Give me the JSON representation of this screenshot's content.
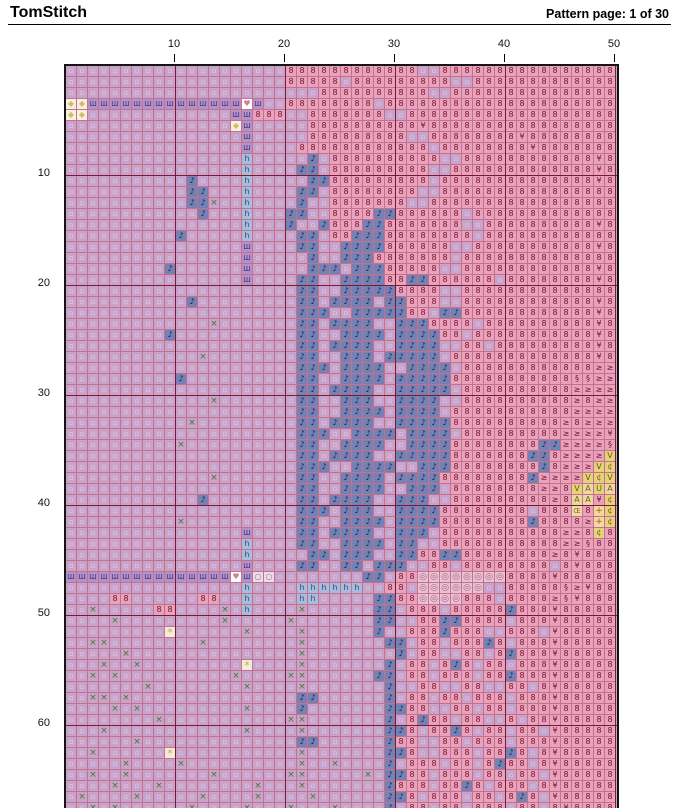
{
  "header": {
    "app_title": "TomStitch",
    "page_info": "Pattern page: 1 of 30"
  },
  "axis": {
    "top_labels": [
      "10",
      "20",
      "30",
      "40",
      "50"
    ],
    "left_labels": [
      "10",
      "20",
      "30",
      "40",
      "50",
      "60"
    ]
  },
  "grid": {
    "cols": 50,
    "rows_count": 68,
    "colors": {
      "minor_line": "#c4728c",
      "major_line": "#6d0c22",
      "outer_border": "#141414",
      "field_bg": "#c8a3cc"
    },
    "legend": {
      ".": {
        "name": "light-lavender-dot",
        "bg": "#c8a3cc",
        "fg": "#e9d4ea",
        "glyph": "▫",
        "size": 7
      },
      "8": {
        "name": "pink-eight",
        "bg": "#e8a2bc",
        "fg": "#77102e",
        "glyph": "8",
        "size": 8
      },
      "n": {
        "name": "blue-music-note",
        "bg": "#7381b4",
        "fg": "#12204e",
        "glyph": "♪",
        "size": 8
      },
      "m": {
        "name": "purple-sha",
        "bg": "#b292c8",
        "fg": "#45307e",
        "glyph": "Ш",
        "size": 7
      },
      "h": {
        "name": "blue-h",
        "bg": "#a9bcdc",
        "fg": "#2d4e86",
        "glyph": "h",
        "size": 8
      },
      "x": {
        "name": "green-cross",
        "bg": "#c8a3cc",
        "fg": "#48762c",
        "glyph": "×",
        "size": 9
      },
      "o": {
        "name": "pale-circle",
        "bg": "#ecdcea",
        "fg": "#9a7898",
        "glyph": "○",
        "size": 8
      },
      "O": {
        "name": "pink-ring",
        "bg": "#e9c3d3",
        "fg": "#a85f7d",
        "glyph": "◎",
        "size": 9
      },
      "d": {
        "name": "cream-diamond",
        "bg": "#f7f1e2",
        "fg": "#d3bd66",
        "glyph": "◆",
        "size": 8
      },
      "w": {
        "name": "white-heart",
        "bg": "#ffffff",
        "fg": "#cf7f95",
        "glyph": "♥",
        "size": 8
      },
      "*": {
        "name": "gold-star",
        "bg": "#f2ecdc",
        "fg": "#cfae3e",
        "glyph": "*",
        "size": 11
      },
      "y": {
        "name": "pink-yen",
        "bg": "#e8a2bc",
        "fg": "#77102e",
        "glyph": "¥",
        "size": 8
      },
      "s": {
        "name": "pink-section",
        "bg": "#e8a2bc",
        "fg": "#77102e",
        "glyph": "§",
        "size": 8
      },
      "g": {
        "name": "pink-gte",
        "bg": "#e8a2bc",
        "fg": "#77102e",
        "glyph": "≥",
        "size": 8
      },
      "V": {
        "name": "yellow-v",
        "bg": "#e5d37b",
        "fg": "#6b5a10",
        "glyph": "V",
        "size": 8
      },
      "A": {
        "name": "tan-a",
        "bg": "#ead9a0",
        "fg": "#7c5c1e",
        "glyph": "A",
        "size": 8
      },
      "U": {
        "name": "yellow-u",
        "bg": "#e5d37b",
        "fg": "#6b5a10",
        "glyph": "U",
        "size": 8
      },
      "c": {
        "name": "yellow-cent",
        "bg": "#e5d37b",
        "fg": "#8a5a10",
        "glyph": "¢",
        "size": 8
      },
      "C": {
        "name": "tan-oe",
        "bg": "#f0dca8",
        "fg": "#a06428",
        "glyph": "Œ",
        "size": 7
      },
      "+": {
        "name": "tan-plus",
        "bg": "#f2d9a2",
        "fg": "#b05818",
        "glyph": "+",
        "size": 9
      }
    },
    "rows": [
      "....................888888888888..8888888888888888",
      "....................88888.888888888..8888888888888",
      ".......................8888888888..888888888888888",
      "ddmmmmmmmmmmmmmmwm..88888888.888888888888888888888",
      "dd.............mm888..8888888..8888888888888888888",
      "...............dm.....8888888888y88888888888888888",
      "................m.....888888888..88888888y88888888",
      "................m....888888888888.88888888y8888888",
      "................h.....n.8888888888..888888888888y8",
      "................h....nn.888888888..8888888888888y8",
      "...........n....h.....nn888888888.88888888888888y8",
      "...........nn...h....nn.88888888..8888888888888888",
      "...........nnx..h....n..8888888..88888888888888888",
      "............n...h...nn..8888nn888888.8888888888888",
      "................h...n..n888nn8888888..8888888888y8",
      "..........n.....h....nn.88nnn88888888.888888888888",
      "................m....nn..nnnn888888..88888888888y8",
      "................m.....n..nnn8888888.88888888888888",
      ".........n......m.....nnn.nnn88888..888888888888y8",
      "................m....nn..nnnn88nn888888.88888888y8",
      ".....................nn..nnnnn8888..88888888888888",
      "...........n.........nn.nnnn.nn888..888888888888y8",
      ".....................nnn..nnnnn88.nn888888888888y8",
      ".............x.......nn.nnnn..nnn8888.8888888888y8",
      ".........n...........nn..nnnn.nnnn88.88888888888y8",
      ".....................nn.nnnn..nnnn..88.888888888y8",
      "............x........nn..nnn.nnnnn.8888888888888y8",
      ".....................nnn.nnnn..nnnn.888888888888gg",
      "..........n..........nn..nnnn.nnnnn88888888888ssgg",
      ".....................nn.nnnn..nnnnn.8888888888gggg",
      ".............x.......nn..nnn..nnnn..8888888888g8gg",
      ".....................nn..nnnn.nnnn.88888888888gggg",
      "...........x.........nn.nnnn..nnnnn8888888888g8ggg",
      ".....................nnn..nnnn.nnnn.888888888ggggy",
      "..........x..........nn..nnnn..nnnn88888888nnggggs",
      ".....................nn.nnnn..nnnnn8888888nn8ggggV",
      ".....................nnn..nnnn..nnn88888888n8gggVc",
      ".............x.......nn..nnnn.nnnn88888888nggggVcV",
      ".....................nn..nnnn..nnn.88888888gg8VAUA",
      "............n........nn.nnnn..nnn..888888888g8AAyc",
      ".....................nnn.nnn..nnnn88888888.888C8+c",
      "..........x..........nn..nnnn.nnnn88888888n8888g+c",
      "................m....nn.nnnn..nnn.88888888888gg8c8",
      "................h....nn..nnnn.nn..88888888888ggs88",
      "................h.....nn.nnn..nn88nn88888888g8y888",
      "................m....nn..nn.nnn..88.88888888.8y888",
      "mmmmmmmmmmmmmmmwmoo........nn.88OOOOOOOO8888y88888",
      "................h....hhhhhh..88.OOOOOO..88888sgy88",
      "....88......88..h....hh.....nn88OOOO888.8888gsy888",
      "..x.....88....x.h....x......nn.888.88888n888y88888",
      "....x.........x.....x.......nn..88nn8888.888y88888",
      ".........*......x....x......n..888n888..888.y88888",
      "..xx........x........x.......nn.88.888n8.888y88888",
      ".....x...............x........n.88..88.8n888y88888",
      "...x..x.........*....x.......n.88.8n8.88.888y88888",
      "..x.x..........x....xx......nn.88.888.88n888y88888",
      ".......x........x....x.......n..88..88..88.8y88888",
      "..xx.x...............nn......n.88.88.888.888y88888",
      "....x.x.........x....n.......nn88..88.88.888y88888",
      "........x...........xx.......n.8n88.88..8.88y88888",
      "...x............x....x.......nn8.88n8.88.88.y88888",
      "......x..............nn......n88..88.888.888y88888",
      "..x......*...........x.......nn8..888.88n8.8y88888",
      ".....x....x..........x..x....n.888.88.8n88.8y88888",
      "..x..x.......x......xx.....x.nn88.888.88.88.y88888",
      "....x...x........x...x.......n888.88n8.888.8y88888",
      ".x....x.....x....x....x......nn8.888.88.8n8.y88888",
      "..x.x......x....x...x...x....n.88.88.888.88.8y8888"
    ]
  }
}
